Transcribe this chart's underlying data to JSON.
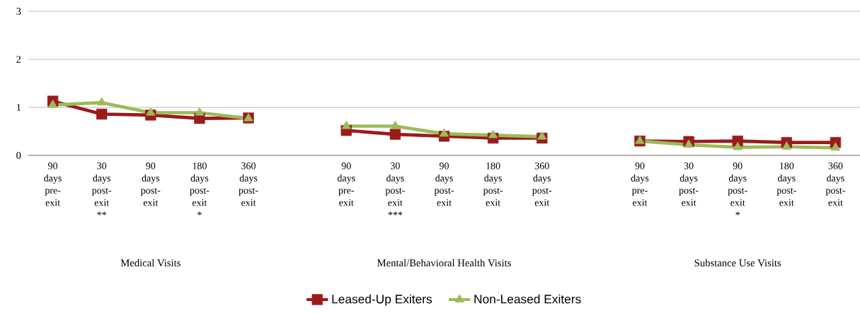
{
  "chart_data": {
    "type": "line",
    "categories": [
      "90 days pre-exit",
      "30 days post-exit **",
      "90 days post-exit",
      "180 days post-exit *",
      "360 days post-exit",
      null,
      "90 days pre-exit",
      "30 days post-exit ***",
      "90 days post-exit",
      "180 days post-exit",
      "360 days post-exit",
      null,
      "90 days pre-exit",
      "30 days post-exit",
      "90 days post-exit *",
      "180 days post-exit",
      "360 days post-exit"
    ],
    "series": [
      {
        "name": "Leased-Up Exiters",
        "color": "#9b1b1b",
        "marker": "square",
        "values": [
          1.13,
          0.86,
          0.84,
          0.77,
          0.78,
          null,
          0.52,
          0.44,
          0.4,
          0.36,
          0.36,
          null,
          0.3,
          0.29,
          0.3,
          0.27,
          0.27
        ]
      },
      {
        "name": "Non-Leased Exiters",
        "color": "#9bbb59",
        "marker": "triangle",
        "values": [
          1.05,
          1.1,
          0.89,
          0.89,
          0.77,
          null,
          0.61,
          0.61,
          0.45,
          0.42,
          0.39,
          null,
          0.3,
          0.22,
          0.17,
          0.18,
          0.16
        ]
      }
    ],
    "ylim": [
      0,
      3
    ],
    "yticks": [
      0,
      1,
      2,
      3
    ],
    "grid": "y",
    "legend": "bottom",
    "annotations": [
      "Medical Visits",
      "Mental/Behavioral  Health Visits",
      "Substance Use Visits"
    ]
  }
}
